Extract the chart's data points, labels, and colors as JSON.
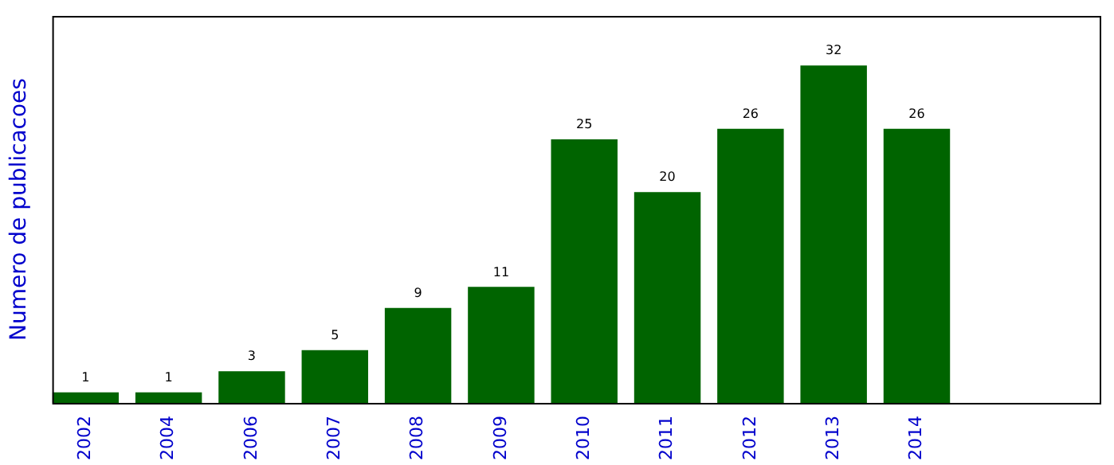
{
  "chart_data": {
    "type": "bar",
    "ylabel": "Numero de publicacoes",
    "categories": [
      "2002",
      "2004",
      "2006",
      "2007",
      "2008",
      "2009",
      "2010",
      "2011",
      "2012",
      "2013",
      "2014"
    ],
    "values": [
      1,
      1,
      3,
      5,
      9,
      11,
      25,
      20,
      26,
      32,
      26
    ],
    "color": "#006400",
    "data_labels": true,
    "tick_labels": "x",
    "grid": false,
    "legend": false
  }
}
